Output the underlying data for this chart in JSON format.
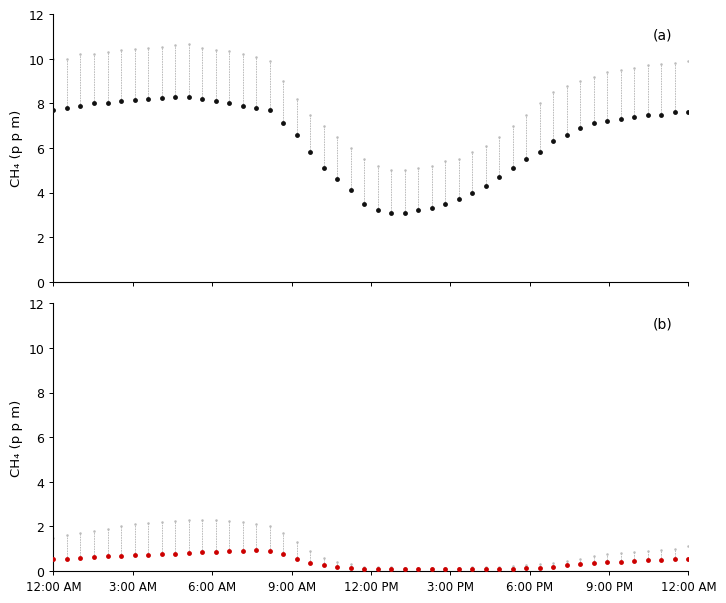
{
  "panel_a_label": "(a)",
  "panel_b_label": "(b)",
  "ylabel": "CH₄ (p p m)",
  "ylim_a": [
    0,
    12
  ],
  "ylim_b": [
    0,
    12
  ],
  "yticks": [
    0,
    2,
    4,
    6,
    8,
    10,
    12
  ],
  "time_labels": [
    "12:00 AM",
    "3:00 AM",
    "6:00 AM",
    "9:00 AM",
    "12:00 PM",
    "3:00 PM",
    "6:00 PM",
    "9:00 PM",
    "12:00 AM"
  ],
  "dot_color_a": "#111111",
  "dot_color_b": "#cc0000",
  "errorbar_color": "#bbbbbb",
  "background_color": "#ffffff",
  "panel_a_mean": [
    7.7,
    7.8,
    7.9,
    8.0,
    8.0,
    8.1,
    8.15,
    8.2,
    8.25,
    8.3,
    8.3,
    8.2,
    8.1,
    8.0,
    7.9,
    7.8,
    7.7,
    7.1,
    6.6,
    5.8,
    5.1,
    4.6,
    4.1,
    3.5,
    3.2,
    3.1,
    3.1,
    3.2,
    3.3,
    3.5,
    3.7,
    4.0,
    4.3,
    4.7,
    5.1,
    5.5,
    5.8,
    6.3,
    6.6,
    6.9,
    7.1,
    7.2,
    7.3,
    7.4,
    7.5,
    7.5,
    7.6,
    7.6
  ],
  "panel_a_upper": [
    10.0,
    10.0,
    10.2,
    10.2,
    10.3,
    10.4,
    10.45,
    10.5,
    10.55,
    10.6,
    10.65,
    10.5,
    10.4,
    10.35,
    10.2,
    10.1,
    9.9,
    9.0,
    8.2,
    7.5,
    7.0,
    6.5,
    6.0,
    5.5,
    5.2,
    5.0,
    5.0,
    5.1,
    5.2,
    5.4,
    5.5,
    5.8,
    6.1,
    6.5,
    7.0,
    7.5,
    8.0,
    8.5,
    8.8,
    9.0,
    9.2,
    9.4,
    9.5,
    9.6,
    9.7,
    9.75,
    9.8,
    9.9
  ],
  "panel_b_mean": [
    0.55,
    0.55,
    0.58,
    0.62,
    0.65,
    0.68,
    0.72,
    0.72,
    0.75,
    0.78,
    0.82,
    0.85,
    0.85,
    0.88,
    0.9,
    0.92,
    0.9,
    0.75,
    0.55,
    0.35,
    0.25,
    0.18,
    0.12,
    0.1,
    0.08,
    0.08,
    0.08,
    0.08,
    0.08,
    0.08,
    0.08,
    0.09,
    0.1,
    0.1,
    0.1,
    0.12,
    0.15,
    0.18,
    0.25,
    0.3,
    0.35,
    0.4,
    0.42,
    0.45,
    0.48,
    0.5,
    0.52,
    0.55
  ],
  "panel_b_upper": [
    1.5,
    1.6,
    1.7,
    1.8,
    1.9,
    2.0,
    2.1,
    2.15,
    2.2,
    2.25,
    2.3,
    2.3,
    2.3,
    2.25,
    2.2,
    2.1,
    2.0,
    1.7,
    1.3,
    0.9,
    0.6,
    0.4,
    0.3,
    0.2,
    0.18,
    0.16,
    0.15,
    0.15,
    0.15,
    0.15,
    0.15,
    0.16,
    0.18,
    0.2,
    0.22,
    0.25,
    0.3,
    0.35,
    0.45,
    0.55,
    0.65,
    0.75,
    0.8,
    0.85,
    0.9,
    0.95,
    1.0,
    1.1
  ],
  "n_points": 48
}
